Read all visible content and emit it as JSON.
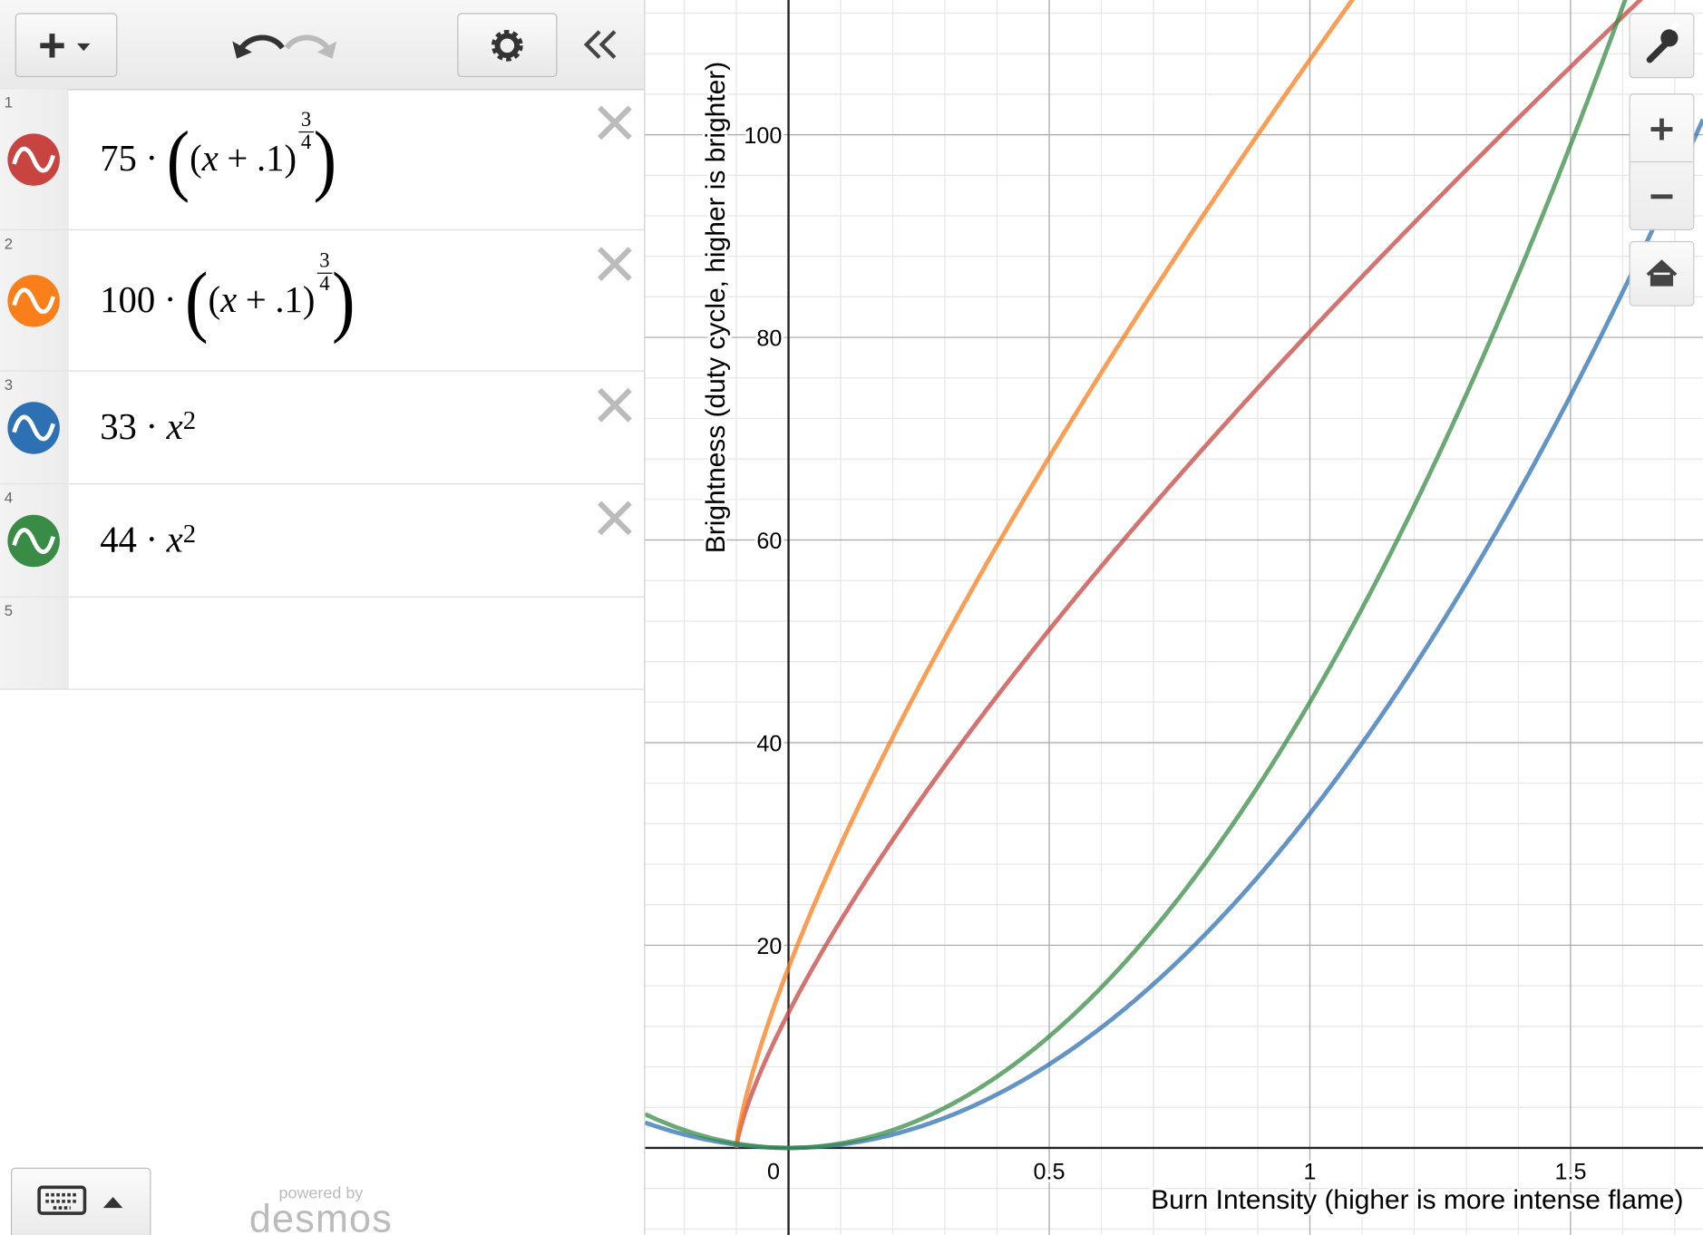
{
  "variable": "x",
  "symbols": {
    "times": "·",
    "plus": "+",
    "open": "(",
    "close": ")"
  },
  "expressions": [
    {
      "number": "1",
      "color": "#c74440",
      "coefficient": 75,
      "shift": {
        "value": 0.1,
        "label": ".1"
      },
      "exponent": {
        "numerator": 3,
        "denominator": 4
      }
    },
    {
      "number": "2",
      "color": "#fa7e19",
      "coefficient": 100,
      "shift": {
        "value": 0.1,
        "label": ".1"
      },
      "exponent": {
        "numerator": 3,
        "denominator": 4
      }
    },
    {
      "number": "3",
      "color": "#2d70b3",
      "coefficient": 33,
      "exponent": 2
    },
    {
      "number": "4",
      "color": "#388c46",
      "coefficient": 44,
      "exponent": 2
    },
    {
      "number": "5"
    }
  ],
  "branding": {
    "powered_by": "powered by",
    "logo": "desmos"
  },
  "graph": {
    "x_label": "Burn Intensity (higher is more intense flame)",
    "y_label": "Brightness (duty cycle, higher is brighter)",
    "xlim": [
      -0.275,
      1.754
    ],
    "ylim": [
      -8.6,
      113.3
    ],
    "xticks": [
      0,
      0.5,
      1,
      1.5
    ],
    "yticks": [
      20,
      40,
      60,
      80,
      100
    ],
    "grid": true
  }
}
